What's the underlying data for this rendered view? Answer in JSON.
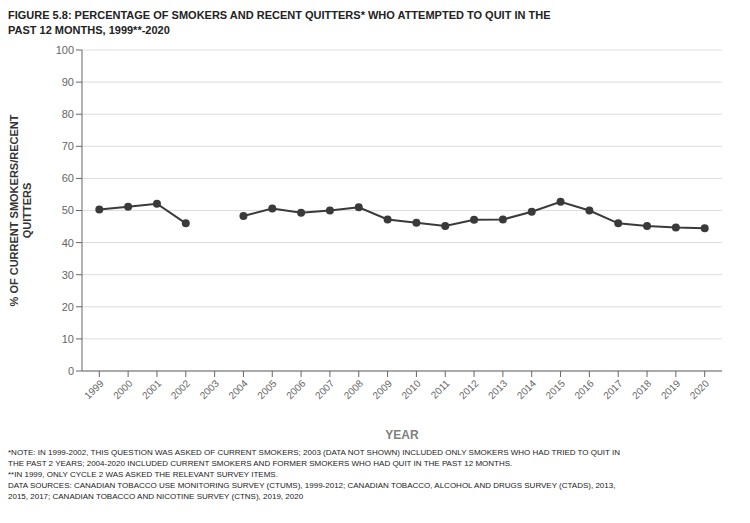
{
  "chart_data": {
    "type": "line",
    "title": "FIGURE 5.8: PERCENTAGE OF SMOKERS AND RECENT QUITTERS* WHO ATTEMPTED TO QUIT IN THE\nPAST 12 MONTHS, 1999**-2020",
    "xlabel": "YEAR",
    "ylabel": "% OF CURRENT SMOKERS/RECENT\nQUITTERS",
    "x": [
      1999,
      2000,
      2001,
      2002,
      2003,
      2004,
      2005,
      2006,
      2007,
      2008,
      2009,
      2010,
      2011,
      2012,
      2013,
      2014,
      2015,
      2016,
      2017,
      2018,
      2019,
      2020
    ],
    "values": [
      50.3,
      51.2,
      52.1,
      46.0,
      null,
      48.3,
      50.6,
      49.3,
      50.0,
      51.0,
      47.2,
      46.2,
      45.2,
      47.1,
      47.2,
      49.6,
      52.7,
      50.0,
      46.0,
      45.2,
      44.7,
      44.5
    ],
    "color": "#3a3a3a",
    "marker": "circle",
    "xlim": [
      1998.4,
      2020.6
    ],
    "xticks": [
      1999,
      2000,
      2001,
      2002,
      2003,
      2004,
      2005,
      2006,
      2007,
      2008,
      2009,
      2010,
      2011,
      2012,
      2013,
      2014,
      2015,
      2016,
      2017,
      2018,
      2019,
      2020
    ],
    "ylim": [
      0,
      100
    ],
    "yticks": [
      0,
      10,
      20,
      30,
      40,
      50,
      60,
      70,
      80,
      90,
      100
    ],
    "grid": true,
    "annotations": [
      "*NOTE: IN 1999-2002, THIS QUESTION WAS ASKED OF CURRENT SMOKERS; 2003 (DATA NOT SHOWN) INCLUDED ONLY SMOKERS WHO HAD TRIED TO QUIT IN",
      "THE PAST 2 YEARS; 2004-2020 INCLUDED CURRENT SMOKERS AND FORMER SMOKERS WHO HAD QUIT IN THE PAST 12 MONTHS.",
      "**IN 1999, ONLY CYCLE 2 WAS ASKED THE RELEVANT SURVEY ITEMS.",
      "DATA SOURCES: CANADIAN TOBACCO USE MONITORING SURVEY (CTUMS), 1999-2012; CANADIAN TOBACCO, ALCOHOL AND DRUGS SURVEY (CTADS), 2013,",
      "2015, 2017; CANADIAN TOBACCO AND NICOTINE SURVEY (CTNS), 2019, 2020"
    ]
  }
}
